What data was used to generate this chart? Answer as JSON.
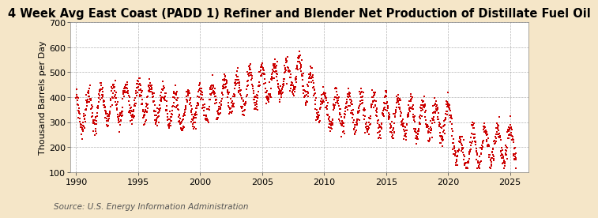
{
  "title": "4 Week Avg East Coast (PADD 1) Refiner and Blender Net Production of Distillate Fuel Oil",
  "ylabel": "Thousand Barrels per Day",
  "source": "Source: U.S. Energy Information Administration",
  "background_color": "#f5e6c8",
  "plot_bg_color": "#ffffff",
  "line_color": "#cc0000",
  "marker": "s",
  "markersize": 2.0,
  "xlim": [
    1989.5,
    2026.5
  ],
  "ylim": [
    100,
    700
  ],
  "yticks": [
    100,
    200,
    300,
    400,
    500,
    600,
    700
  ],
  "xticks": [
    1990,
    1995,
    2000,
    2005,
    2010,
    2015,
    2020,
    2025
  ],
  "title_fontsize": 10.5,
  "ylabel_fontsize": 8,
  "tick_fontsize": 8,
  "source_fontsize": 7.5
}
